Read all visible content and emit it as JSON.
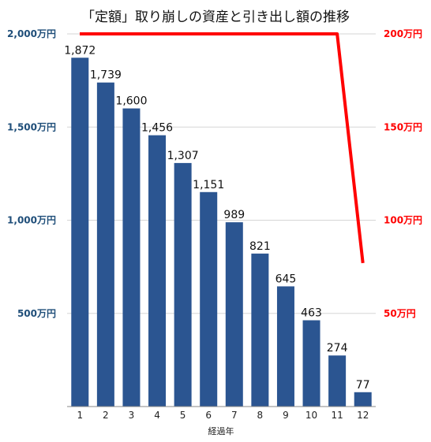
{
  "chart_data": {
    "type": "bar",
    "title": "「定額」取り崩しの資産と引き出し額の推移",
    "xlabel": "経過年",
    "categories": [
      "1",
      "2",
      "3",
      "4",
      "5",
      "6",
      "7",
      "8",
      "9",
      "10",
      "11",
      "12"
    ],
    "series": [
      {
        "axis": "left",
        "type": "bar",
        "color": "#2b5591",
        "values": [
          1872,
          1739,
          1600,
          1456,
          1307,
          1151,
          989,
          821,
          645,
          463,
          274,
          77
        ],
        "data_labels": [
          "1,872",
          "1,739",
          "1,600",
          "1,456",
          "1,307",
          "1,151",
          "989",
          "821",
          "645",
          "463",
          "274",
          "77"
        ]
      },
      {
        "axis": "right",
        "type": "line",
        "color": "#ff0000",
        "values": [
          200,
          200,
          200,
          200,
          200,
          200,
          200,
          200,
          200,
          200,
          200,
          77
        ]
      }
    ],
    "left_axis": {
      "ylim": [
        0,
        2000
      ],
      "ticks": [
        500,
        1000,
        1500,
        2000
      ],
      "tick_labels": [
        "500万円",
        "1,000万円",
        "1,500万円",
        "2,000万円"
      ],
      "color": "#1f4e79"
    },
    "right_axis": {
      "ylim": [
        0,
        200
      ],
      "ticks": [
        50,
        100,
        150,
        200
      ],
      "tick_labels": [
        "50万円",
        "100万円",
        "150万円",
        "200万円"
      ],
      "color": "#ff0000"
    },
    "grid": true
  }
}
